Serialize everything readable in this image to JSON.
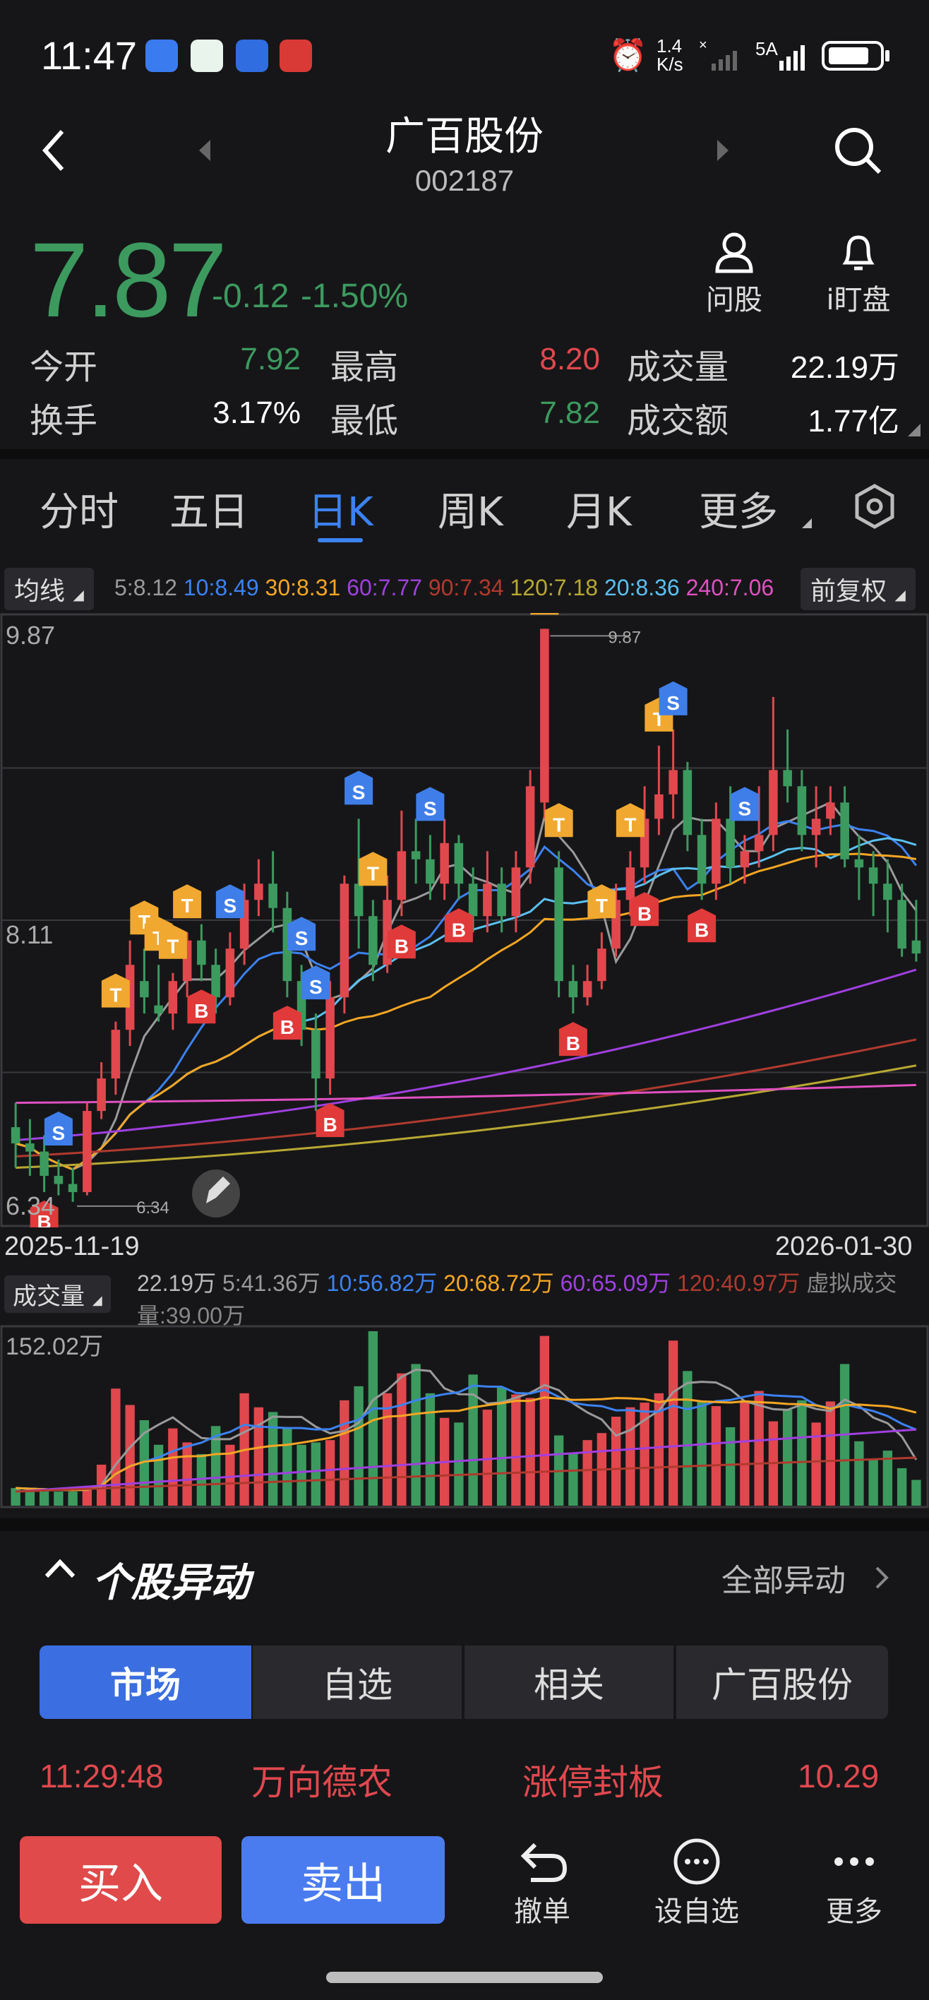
{
  "status": {
    "time": "11:47",
    "net_speed_top": "1.4",
    "net_speed_bottom": "K/s",
    "signal_label": "5A"
  },
  "header": {
    "stock_name": "广百股份",
    "stock_code": "002187"
  },
  "quote": {
    "price": "7.87",
    "change": "-0.12",
    "change_pct": "-1.50%",
    "actions": [
      {
        "label": "问股"
      },
      {
        "label": "i盯盘"
      }
    ],
    "stats": [
      {
        "label": "今开",
        "value": "7.92",
        "color": "#3c9a5f"
      },
      {
        "label": "最高",
        "value": "8.20",
        "color": "#e0484e"
      },
      {
        "label": "成交量",
        "value": "22.19万",
        "color": "#ffffff"
      },
      {
        "label": "换手",
        "value": "3.17%",
        "color": "#ffffff"
      },
      {
        "label": "最低",
        "value": "7.82",
        "color": "#3c9a5f"
      },
      {
        "label": "成交额",
        "value": "1.77亿",
        "color": "#ffffff"
      }
    ]
  },
  "tabs": [
    {
      "label": "分时"
    },
    {
      "label": "五日"
    },
    {
      "label": "日K",
      "active": true
    },
    {
      "label": "周K"
    },
    {
      "label": "月K"
    },
    {
      "label": "更多"
    }
  ],
  "ma_bar": {
    "selector": "均线",
    "items": [
      {
        "text": "5:8.12",
        "color": "#9a9a9a"
      },
      {
        "text": "10:8.49",
        "color": "#3c82f0"
      },
      {
        "text": "30:8.31",
        "color": "#f5a623"
      },
      {
        "text": "60:7.77",
        "color": "#a040e0"
      },
      {
        "text": "90:7.34",
        "color": "#b03a2e"
      },
      {
        "text": "120:7.18",
        "color": "#b8a832"
      },
      {
        "text": "20:8.36",
        "color": "#5bc0f0"
      },
      {
        "text": "240:7.06",
        "color": "#e050c0"
      }
    ],
    "adjust": "前复权"
  },
  "chart_data": [
    {
      "type": "candlestick",
      "y_max_label": "9.87",
      "y_mid_label": "8.11",
      "y_min_label": "6.34",
      "high_marker": "9.87",
      "low_marker": "6.34",
      "ylim": [
        6.2,
        9.95
      ],
      "x_start": "2025-11-19",
      "x_end": "2026-01-30",
      "candles": [
        [
          6.8,
          6.7,
          6.95,
          6.55
        ],
        [
          6.7,
          6.65,
          6.85,
          6.5
        ],
        [
          6.65,
          6.5,
          6.75,
          6.4
        ],
        [
          6.5,
          6.45,
          6.6,
          6.38
        ],
        [
          6.45,
          6.4,
          6.55,
          6.34
        ],
        [
          6.4,
          6.9,
          6.95,
          6.38
        ],
        [
          6.9,
          7.1,
          7.2,
          6.85
        ],
        [
          7.1,
          7.4,
          7.45,
          7.0
        ],
        [
          7.4,
          7.8,
          7.95,
          7.3
        ],
        [
          7.7,
          7.6,
          7.9,
          7.5
        ],
        [
          7.55,
          7.5,
          7.8,
          7.45
        ],
        [
          7.5,
          7.7,
          7.75,
          7.4
        ],
        [
          7.7,
          7.95,
          8.0,
          7.6
        ],
        [
          7.95,
          7.8,
          8.05,
          7.7
        ],
        [
          7.8,
          7.6,
          7.9,
          7.5
        ],
        [
          7.6,
          7.9,
          8.0,
          7.55
        ],
        [
          7.9,
          8.2,
          8.3,
          7.8
        ],
        [
          8.2,
          8.3,
          8.45,
          8.1
        ],
        [
          8.3,
          8.15,
          8.5,
          8.0
        ],
        [
          8.15,
          7.7,
          8.25,
          7.6
        ],
        [
          7.7,
          7.4,
          7.8,
          7.3
        ],
        [
          7.4,
          7.1,
          7.5,
          6.9
        ],
        [
          7.1,
          7.6,
          7.7,
          7.0
        ],
        [
          7.6,
          8.3,
          8.35,
          7.5
        ],
        [
          8.3,
          8.1,
          8.7,
          7.9
        ],
        [
          8.1,
          7.8,
          8.2,
          7.7
        ],
        [
          7.8,
          8.2,
          8.35,
          7.75
        ],
        [
          8.2,
          8.5,
          8.75,
          8.1
        ],
        [
          8.5,
          8.45,
          8.7,
          8.3
        ],
        [
          8.45,
          8.3,
          8.6,
          8.2
        ],
        [
          8.3,
          8.55,
          8.7,
          8.2
        ],
        [
          8.55,
          8.3,
          8.6,
          8.2
        ],
        [
          8.3,
          8.1,
          8.4,
          8.0
        ],
        [
          8.1,
          8.3,
          8.5,
          8.0
        ],
        [
          8.3,
          8.1,
          8.4,
          8.0
        ],
        [
          8.1,
          8.4,
          8.5,
          8.0
        ],
        [
          8.4,
          8.9,
          9.0,
          8.3
        ],
        [
          8.8,
          9.87,
          9.87,
          8.7
        ],
        [
          8.4,
          7.7,
          8.5,
          7.6
        ],
        [
          7.7,
          7.6,
          7.8,
          7.5
        ],
        [
          7.6,
          7.7,
          7.8,
          7.55
        ],
        [
          7.7,
          7.9,
          8.0,
          7.65
        ],
        [
          7.9,
          8.2,
          8.3,
          7.85
        ],
        [
          8.2,
          8.4,
          8.5,
          8.1
        ],
        [
          8.4,
          8.7,
          8.9,
          8.3
        ],
        [
          8.7,
          8.85,
          9.15,
          8.6
        ],
        [
          8.85,
          9.0,
          9.25,
          8.7
        ],
        [
          9.0,
          8.6,
          9.05,
          8.5
        ],
        [
          8.6,
          8.3,
          8.7,
          8.2
        ],
        [
          8.3,
          8.7,
          8.8,
          8.2
        ],
        [
          8.7,
          8.4,
          8.9,
          8.3
        ],
        [
          8.4,
          8.5,
          8.6,
          8.3
        ],
        [
          8.5,
          8.6,
          8.9,
          8.4
        ],
        [
          8.6,
          9.0,
          9.45,
          8.5
        ],
        [
          9.0,
          8.9,
          9.25,
          8.8
        ],
        [
          8.9,
          8.6,
          9.0,
          8.5
        ],
        [
          8.6,
          8.7,
          8.9,
          8.4
        ],
        [
          8.7,
          8.8,
          8.9,
          8.6
        ],
        [
          8.8,
          8.45,
          8.9,
          8.4
        ],
        [
          8.45,
          8.4,
          8.6,
          8.2
        ],
        [
          8.4,
          8.3,
          8.5,
          8.1
        ],
        [
          8.3,
          8.2,
          8.45,
          8.0
        ],
        [
          8.2,
          7.9,
          8.3,
          7.85
        ],
        [
          7.95,
          7.87,
          8.2,
          7.82
        ]
      ],
      "signals": [
        {
          "idx": 2,
          "tag": "B"
        },
        {
          "idx": 3,
          "tag": "S"
        },
        {
          "idx": 7,
          "tag": "T"
        },
        {
          "idx": 9,
          "tag": "T"
        },
        {
          "idx": 10,
          "tag": "T"
        },
        {
          "idx": 11,
          "tag": "T"
        },
        {
          "idx": 12,
          "tag": "T"
        },
        {
          "idx": 13,
          "tag": "B"
        },
        {
          "idx": 15,
          "tag": "S"
        },
        {
          "idx": 19,
          "tag": "B"
        },
        {
          "idx": 20,
          "tag": "S"
        },
        {
          "idx": 21,
          "tag": "S"
        },
        {
          "idx": 22,
          "tag": "B"
        },
        {
          "idx": 24,
          "tag": "S"
        },
        {
          "idx": 25,
          "tag": "T"
        },
        {
          "idx": 27,
          "tag": "B"
        },
        {
          "idx": 29,
          "tag": "S"
        },
        {
          "idx": 31,
          "tag": "B"
        },
        {
          "idx": 37,
          "tag": "T"
        },
        {
          "idx": 38,
          "tag": "T"
        },
        {
          "idx": 39,
          "tag": "B"
        },
        {
          "idx": 41,
          "tag": "T"
        },
        {
          "idx": 43,
          "tag": "T"
        },
        {
          "idx": 44,
          "tag": "B"
        },
        {
          "idx": 45,
          "tag": "T"
        },
        {
          "idx": 46,
          "tag": "S"
        },
        {
          "idx": 48,
          "tag": "B"
        },
        {
          "idx": 51,
          "tag": "S"
        }
      ]
    },
    {
      "type": "bar",
      "title": "成交量",
      "legend": [
        {
          "text": "22.19万",
          "color": "#bbbbbb"
        },
        {
          "text": "5:41.36万",
          "color": "#9a9a9a"
        },
        {
          "text": "10:56.82万",
          "color": "#3c82f0"
        },
        {
          "text": "20:68.72万",
          "color": "#f5a623"
        },
        {
          "text": "60:65.09万",
          "color": "#a040e0"
        },
        {
          "text": "120:40.97万",
          "color": "#b03a2e"
        },
        {
          "text": "虚拟成交量:39.00万",
          "color": "#888888"
        }
      ],
      "y_max_label": "152.02万",
      "ymax": 152.02,
      "values": [
        15,
        14,
        13,
        12,
        12,
        16,
        35,
        100,
        86,
        73,
        52,
        66,
        54,
        44,
        68,
        52,
        96,
        84,
        80,
        67,
        52,
        54,
        56,
        90,
        102,
        149,
        96,
        113,
        121,
        96,
        75,
        71,
        112,
        82,
        101,
        95,
        92,
        145,
        60,
        45,
        56,
        62,
        76,
        84,
        88,
        96,
        141,
        115,
        89,
        85,
        67,
        90,
        98,
        72,
        82,
        90,
        71,
        89,
        121,
        55,
        40,
        47,
        32,
        22
      ]
    }
  ],
  "events": {
    "title": "个股异动",
    "all_link": "全部异动",
    "segments": [
      {
        "label": "市场",
        "active": true
      },
      {
        "label": "自选"
      },
      {
        "label": "相关"
      },
      {
        "label": "广百股份"
      }
    ],
    "row": {
      "time": "11:29:48",
      "stock": "万向德农",
      "event": "涨停封板",
      "value": "10.29"
    }
  },
  "bottom_bar": {
    "buy": "买入",
    "sell": "卖出",
    "actions": [
      {
        "label": "撤单"
      },
      {
        "label": "设自选"
      },
      {
        "label": "更多"
      }
    ]
  }
}
